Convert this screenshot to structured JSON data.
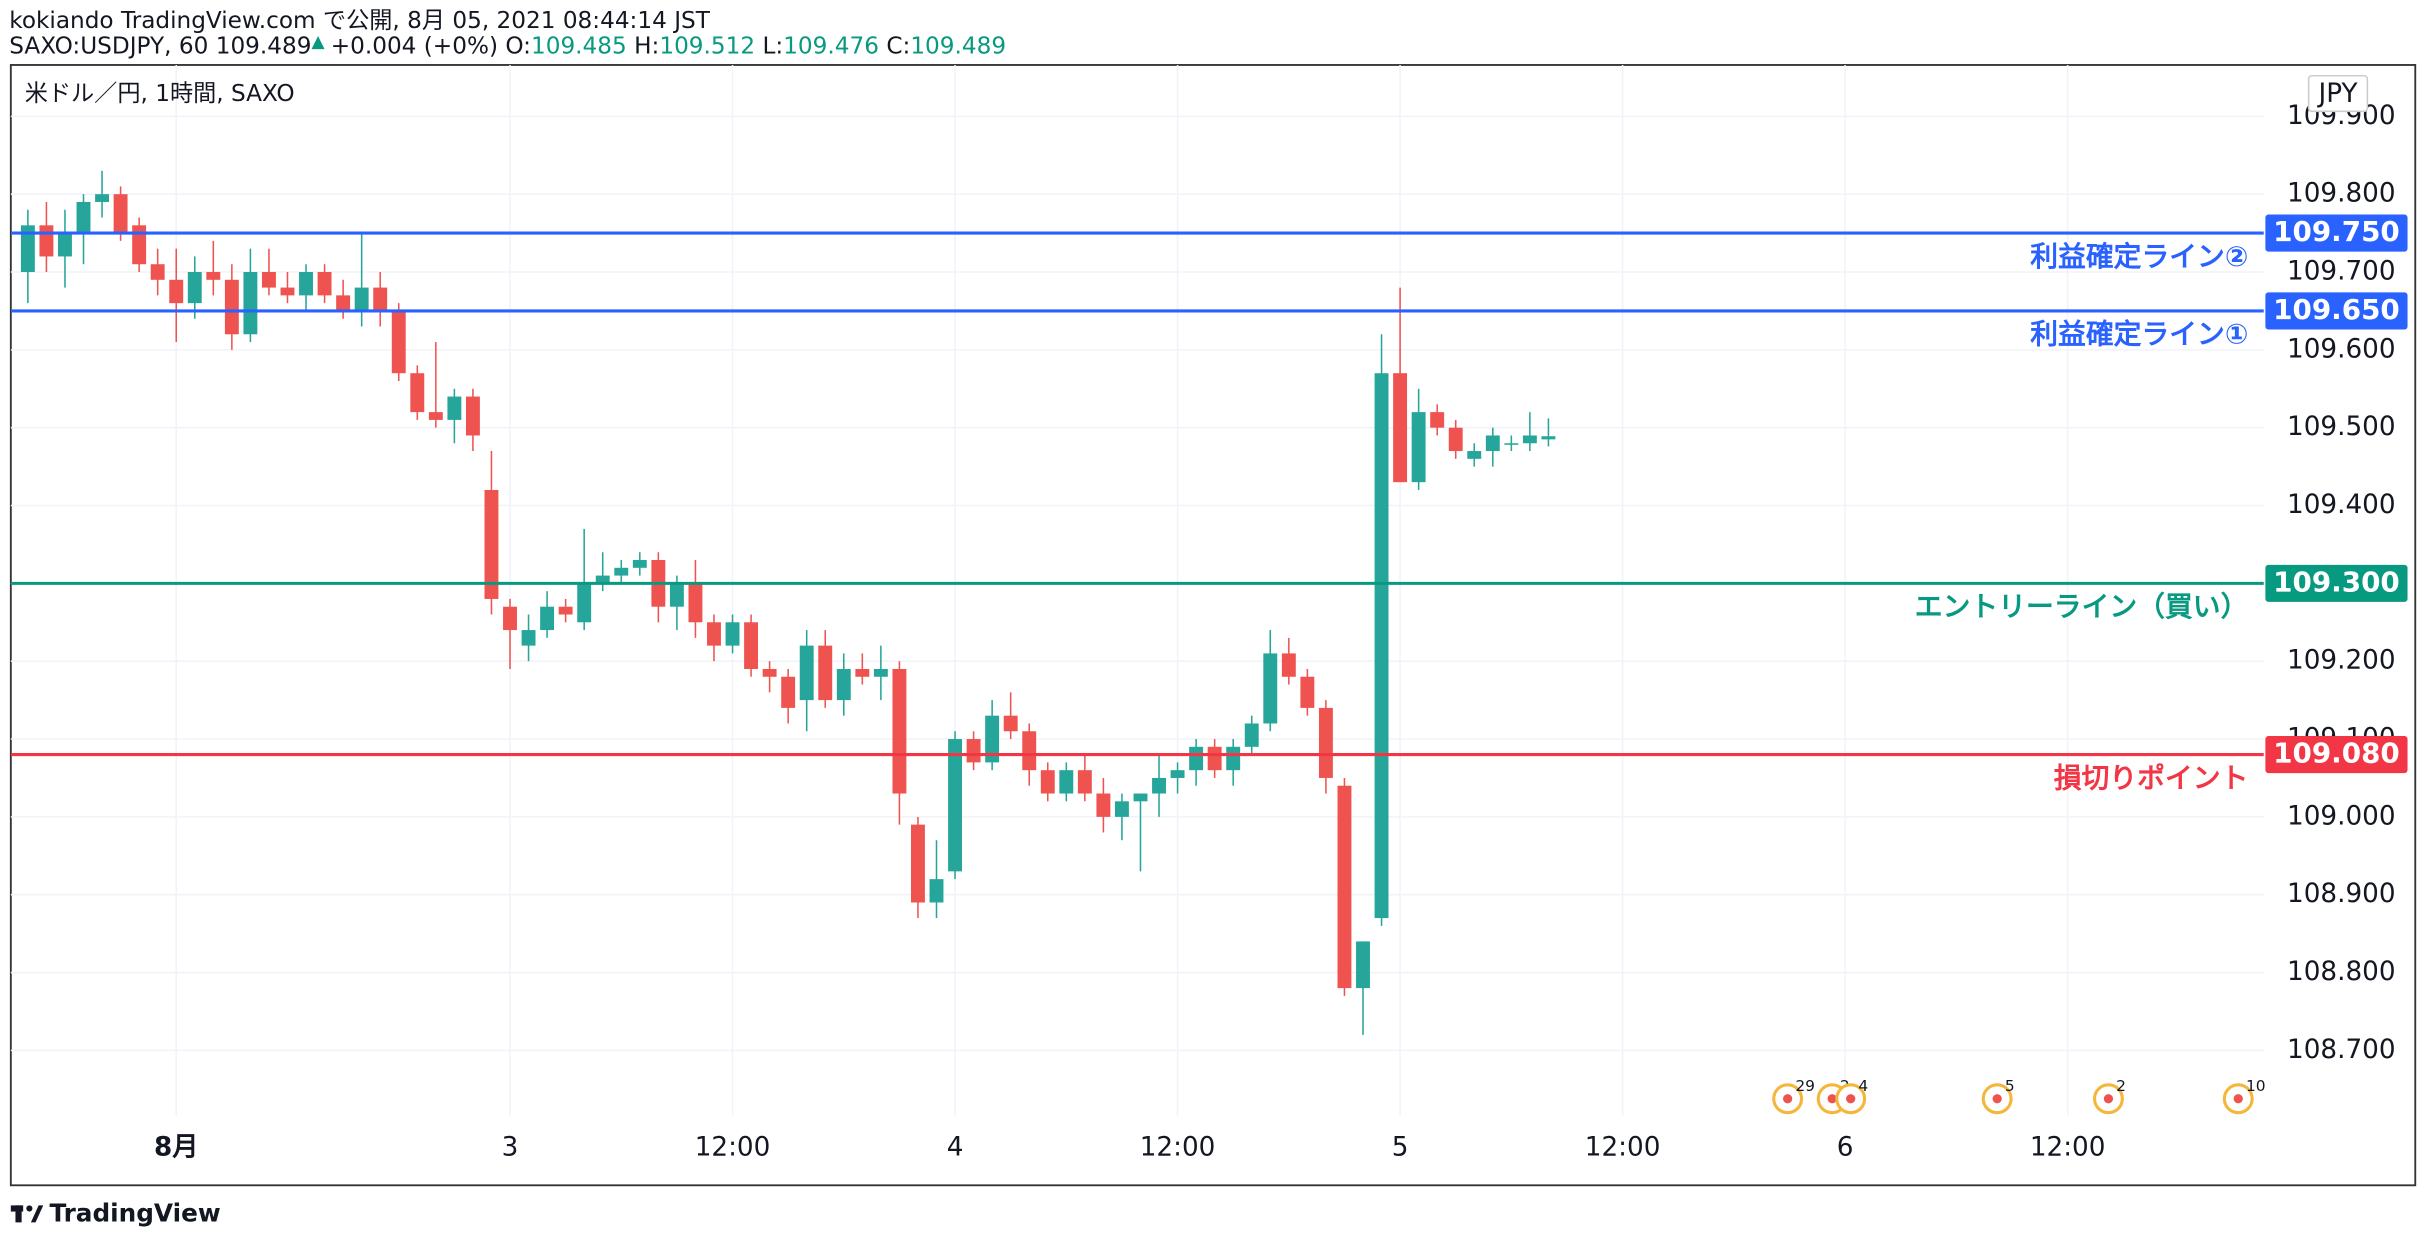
{
  "header": {
    "title": "kokiando TradingView.com で公開, 8月 05, 2021 08:44:14 JST",
    "symbol": "SAXO:USDJPY, 60",
    "last": "109.489",
    "change_arrow": "▲",
    "change": "+0.004 (+0%)",
    "ohlc": [
      {
        "label": "O:",
        "value": "109.485"
      },
      {
        "label": "H:",
        "value": "109.512"
      },
      {
        "label": "L:",
        "value": "109.476"
      },
      {
        "label": "C:",
        "value": "109.489"
      }
    ]
  },
  "chart_data": {
    "type": "candlestick",
    "legend_text": "米ドル／円, 1時間, SAXO",
    "currency": "JPY",
    "up_color": "#26a69a",
    "down_color": "#ef5350",
    "grid": true,
    "x": [
      0,
      1,
      2,
      3,
      4,
      5,
      6,
      7,
      8,
      9,
      10,
      11,
      12,
      13,
      14,
      15,
      16,
      17,
      18,
      19,
      20,
      21,
      22,
      23,
      24,
      25,
      26,
      27,
      28,
      29,
      30,
      31,
      32,
      33,
      34,
      35,
      36,
      37,
      38,
      39,
      40,
      41,
      42,
      43,
      44,
      45,
      46,
      47,
      48,
      49,
      50,
      51,
      52,
      53,
      54,
      55,
      56,
      57,
      58,
      59,
      60,
      61,
      62,
      63,
      64,
      65,
      66,
      67,
      68,
      69,
      70,
      71,
      72,
      73,
      74,
      75,
      76,
      77,
      78,
      79,
      80,
      81,
      82
    ],
    "open": [
      109.7,
      109.76,
      109.72,
      109.75,
      109.79,
      109.8,
      109.76,
      109.71,
      109.69,
      109.66,
      109.7,
      109.69,
      109.62,
      109.7,
      109.68,
      109.67,
      109.7,
      109.67,
      109.65,
      109.68,
      109.65,
      109.57,
      109.52,
      109.51,
      109.54,
      109.42,
      109.27,
      109.22,
      109.24,
      109.27,
      109.25,
      109.3,
      109.31,
      109.32,
      109.33,
      109.27,
      109.3,
      109.25,
      109.22,
      109.25,
      109.19,
      109.18,
      109.15,
      109.22,
      109.15,
      109.19,
      109.18,
      109.19,
      108.99,
      108.89,
      108.93,
      109.1,
      109.07,
      109.13,
      109.11,
      109.06,
      109.03,
      109.06,
      109.03,
      109.0,
      109.02,
      109.03,
      109.05,
      109.06,
      109.09,
      109.06,
      109.09,
      109.12,
      109.21,
      109.18,
      109.14,
      109.04,
      108.78,
      108.87,
      109.57,
      109.43,
      109.52,
      109.5,
      109.46,
      109.47,
      109.48,
      109.48,
      109.485
    ],
    "high": [
      109.78,
      109.79,
      109.78,
      109.8,
      109.83,
      109.81,
      109.77,
      109.73,
      109.73,
      109.72,
      109.74,
      109.71,
      109.73,
      109.73,
      109.7,
      109.71,
      109.71,
      109.69,
      109.75,
      109.7,
      109.66,
      109.58,
      109.61,
      109.55,
      109.55,
      109.47,
      109.28,
      109.26,
      109.29,
      109.28,
      109.37,
      109.34,
      109.33,
      109.34,
      109.34,
      109.31,
      109.33,
      109.26,
      109.26,
      109.26,
      109.2,
      109.19,
      109.24,
      109.24,
      109.21,
      109.21,
      109.22,
      109.2,
      109.0,
      108.97,
      109.11,
      109.11,
      109.15,
      109.16,
      109.12,
      109.07,
      109.07,
      109.08,
      109.05,
      109.03,
      109.03,
      109.08,
      109.07,
      109.1,
      109.1,
      109.1,
      109.13,
      109.24,
      109.23,
      109.19,
      109.15,
      109.05,
      108.83,
      109.62,
      109.68,
      109.55,
      109.53,
      109.51,
      109.48,
      109.5,
      109.49,
      109.52,
      109.512
    ],
    "low": [
      109.66,
      109.7,
      109.68,
      109.71,
      109.77,
      109.74,
      109.7,
      109.67,
      109.61,
      109.64,
      109.67,
      109.6,
      109.61,
      109.67,
      109.66,
      109.65,
      109.66,
      109.64,
      109.63,
      109.63,
      109.56,
      109.51,
      109.5,
      109.48,
      109.47,
      109.26,
      109.19,
      109.2,
      109.23,
      109.25,
      109.24,
      109.29,
      109.3,
      109.31,
      109.25,
      109.24,
      109.23,
      109.2,
      109.21,
      109.18,
      109.16,
      109.12,
      109.11,
      109.14,
      109.13,
      109.17,
      109.15,
      108.99,
      108.87,
      108.87,
      108.92,
      109.06,
      109.06,
      109.1,
      109.04,
      109.02,
      109.02,
      109.02,
      108.98,
      108.97,
      108.93,
      109.0,
      109.03,
      109.04,
      109.05,
      109.04,
      109.08,
      109.11,
      109.17,
      109.13,
      109.03,
      108.77,
      108.72,
      108.86,
      109.43,
      109.42,
      109.49,
      109.46,
      109.45,
      109.45,
      109.47,
      109.47,
      109.476
    ],
    "close": [
      109.76,
      109.72,
      109.75,
      109.79,
      109.8,
      109.75,
      109.71,
      109.69,
      109.66,
      109.7,
      109.69,
      109.62,
      109.7,
      109.68,
      109.67,
      109.7,
      109.67,
      109.65,
      109.68,
      109.65,
      109.57,
      109.52,
      109.51,
      109.54,
      109.49,
      109.28,
      109.24,
      109.24,
      109.27,
      109.26,
      109.3,
      109.31,
      109.32,
      109.33,
      109.27,
      109.3,
      109.25,
      109.22,
      109.25,
      109.19,
      109.18,
      109.14,
      109.22,
      109.15,
      109.19,
      109.18,
      109.19,
      109.03,
      108.89,
      108.92,
      109.1,
      109.07,
      109.13,
      109.11,
      109.06,
      109.03,
      109.06,
      109.03,
      109.0,
      109.02,
      109.03,
      109.05,
      109.06,
      109.09,
      109.06,
      109.09,
      109.12,
      109.21,
      109.18,
      109.14,
      109.05,
      108.78,
      108.84,
      109.57,
      109.43,
      109.52,
      109.5,
      109.47,
      109.47,
      109.49,
      109.48,
      109.49,
      109.489
    ],
    "xlim": [
      -0.92,
      120.58
    ],
    "xticks": [
      {
        "value": 8,
        "label": "8月"
      },
      {
        "value": 26,
        "label": "3"
      },
      {
        "value": 38,
        "label": "12:00"
      },
      {
        "value": 50,
        "label": "4"
      },
      {
        "value": 62,
        "label": "12:00"
      },
      {
        "value": 74,
        "label": "5"
      },
      {
        "value": 86,
        "label": "12:00"
      },
      {
        "value": 98,
        "label": "6"
      },
      {
        "value": 110,
        "label": "12:00"
      }
    ],
    "ylim": [
      108.616,
      109.966
    ],
    "yticks": [
      {
        "value": 108.7,
        "label": "108.700"
      },
      {
        "value": 108.8,
        "label": "108.800"
      },
      {
        "value": 108.9,
        "label": "108.900"
      },
      {
        "value": 109.0,
        "label": "109.000"
      },
      {
        "value": 109.1,
        "label": "109.100"
      },
      {
        "value": 109.2,
        "label": "109.200"
      },
      {
        "value": 109.3,
        "label": "109.300"
      },
      {
        "value": 109.4,
        "label": "109.400"
      },
      {
        "value": 109.5,
        "label": "109.500"
      },
      {
        "value": 109.6,
        "label": "109.600"
      },
      {
        "value": 109.7,
        "label": "109.700"
      },
      {
        "value": 109.8,
        "label": "109.800"
      },
      {
        "value": 109.9,
        "label": "109.900"
      }
    ],
    "hlines": [
      {
        "value": 109.75,
        "price_label": "109.750",
        "label": "利益確定ライン②",
        "color": "#2962ff"
      },
      {
        "value": 109.65,
        "price_label": "109.650",
        "label": "利益確定ライン①",
        "color": "#2962ff"
      },
      {
        "value": 109.3,
        "price_label": "109.300",
        "label": "エントリーライン（買い）",
        "color": "#089981"
      },
      {
        "value": 109.08,
        "price_label": "109.080",
        "label": "損切りポイント",
        "color": "#f23645"
      }
    ],
    "events": [
      {
        "x": 94.9,
        "label": "29"
      },
      {
        "x": 97.3,
        "label": "2"
      },
      {
        "x": 98.3,
        "label": "4"
      },
      {
        "x": 106.2,
        "label": "5"
      },
      {
        "x": 112.2,
        "label": "2"
      },
      {
        "x": 119.2,
        "label": "10"
      }
    ]
  },
  "footer": {
    "brand": "TradingView"
  }
}
